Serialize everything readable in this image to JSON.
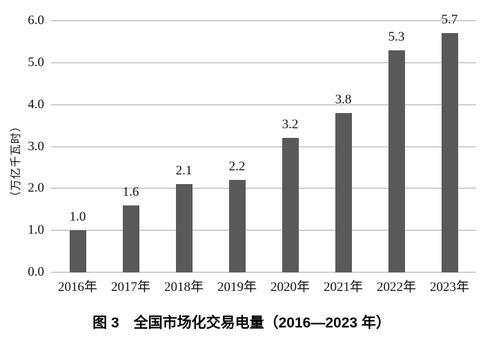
{
  "caption": "图 3　全国市场化交易电量（2016—2023 年）",
  "chart_data": {
    "type": "bar",
    "title": "图 3　全国市场化交易电量（2016—2023 年）",
    "ylabel": "（万亿千瓦时）",
    "xlabel": "",
    "categories": [
      "2016年",
      "2017年",
      "2018年",
      "2019年",
      "2020年",
      "2021年",
      "2022年",
      "2023年"
    ],
    "values": [
      1.0,
      1.6,
      2.1,
      2.2,
      3.2,
      3.8,
      5.3,
      5.7
    ],
    "value_labels": [
      "1.0",
      "1.6",
      "2.1",
      "2.2",
      "3.2",
      "3.8",
      "5.3",
      "5.7"
    ],
    "yticks": [
      "0.0",
      "1.0",
      "2.0",
      "3.0",
      "4.0",
      "5.0",
      "6.0"
    ],
    "ylim": [
      0,
      6
    ],
    "grid": true,
    "legend": false,
    "bar_color": "#595959",
    "grid_color": "#cfcfcf",
    "text_color": "#111111",
    "background": "#ffffff"
  }
}
